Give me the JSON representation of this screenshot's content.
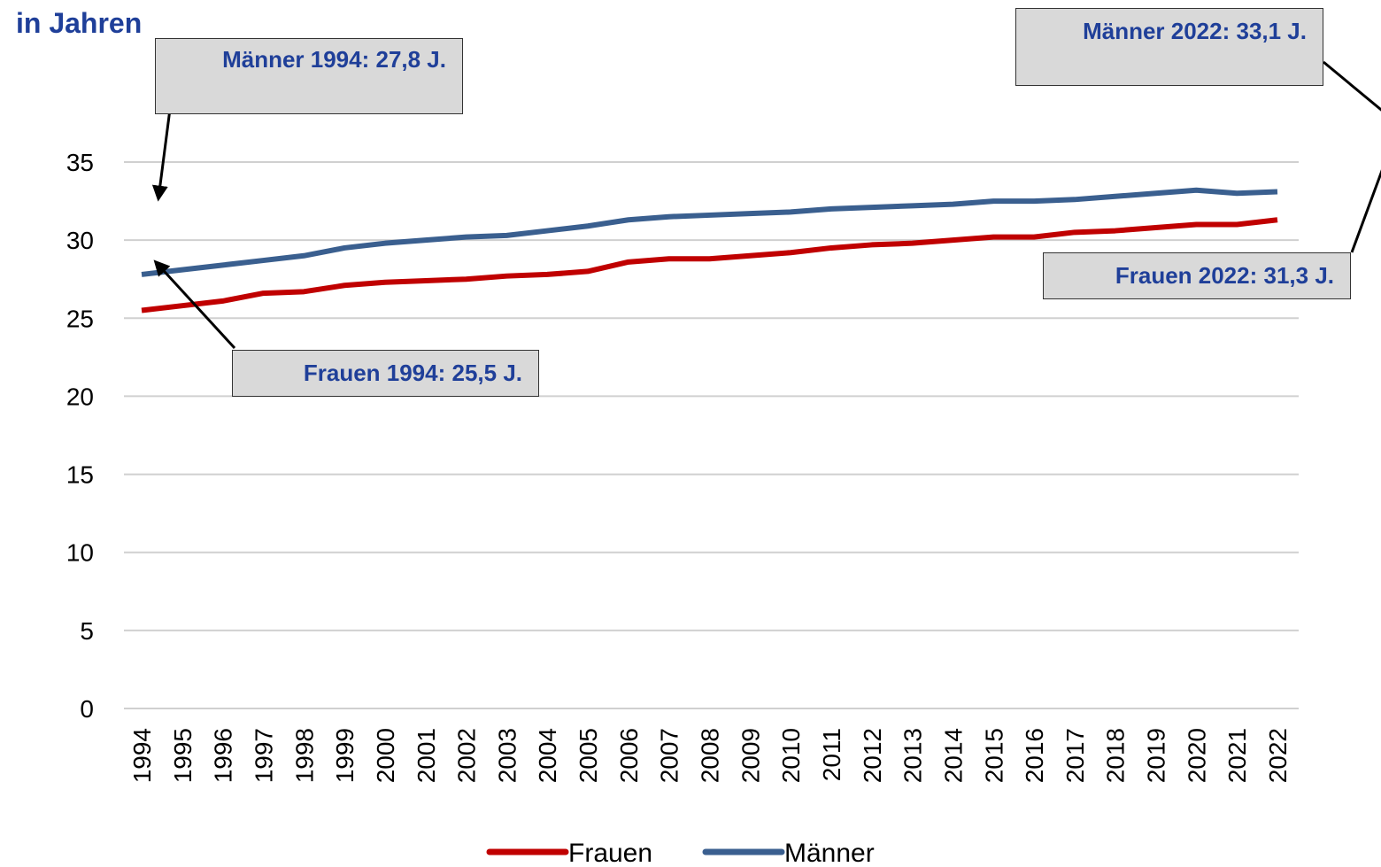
{
  "chart_data": {
    "type": "line",
    "title": "in Jahren",
    "categories": [
      "1994",
      "1995",
      "1996",
      "1997",
      "1998",
      "1999",
      "2000",
      "2001",
      "2002",
      "2003",
      "2004",
      "2005",
      "2006",
      "2007",
      "2008",
      "2009",
      "2010",
      "2011",
      "2012",
      "2013",
      "2014",
      "2015",
      "2016",
      "2017",
      "2018",
      "2019",
      "2020",
      "2021",
      "2022"
    ],
    "series": [
      {
        "name": "Frauen",
        "color": "#c00000",
        "values": [
          25.5,
          25.8,
          26.1,
          26.6,
          26.7,
          27.1,
          27.3,
          27.4,
          27.5,
          27.7,
          27.8,
          28.0,
          28.6,
          28.8,
          28.8,
          29.0,
          29.2,
          29.5,
          29.7,
          29.8,
          30.0,
          30.2,
          30.2,
          30.5,
          30.6,
          30.8,
          31.0,
          31.0,
          31.3
        ]
      },
      {
        "name": "Männer",
        "color": "#3a5f8f",
        "values": [
          27.8,
          28.1,
          28.4,
          28.7,
          29.0,
          29.5,
          29.8,
          30.0,
          30.2,
          30.3,
          30.6,
          30.9,
          31.3,
          31.5,
          31.6,
          31.7,
          31.8,
          32.0,
          32.1,
          32.2,
          32.3,
          32.5,
          32.5,
          32.6,
          32.8,
          33.0,
          33.2,
          33.0,
          33.1
        ]
      }
    ],
    "annotations": [
      "Männer 1994: 27,8 J.",
      "Männer 2022: 33,1 J.",
      "Frauen 2022: 31,3 J.",
      "Frauen 1994: 25,5 J."
    ],
    "ylim": [
      0,
      35
    ],
    "yticks": [
      0,
      5,
      10,
      15,
      20,
      25,
      30,
      35
    ],
    "grid": true,
    "legend": "bottom"
  }
}
